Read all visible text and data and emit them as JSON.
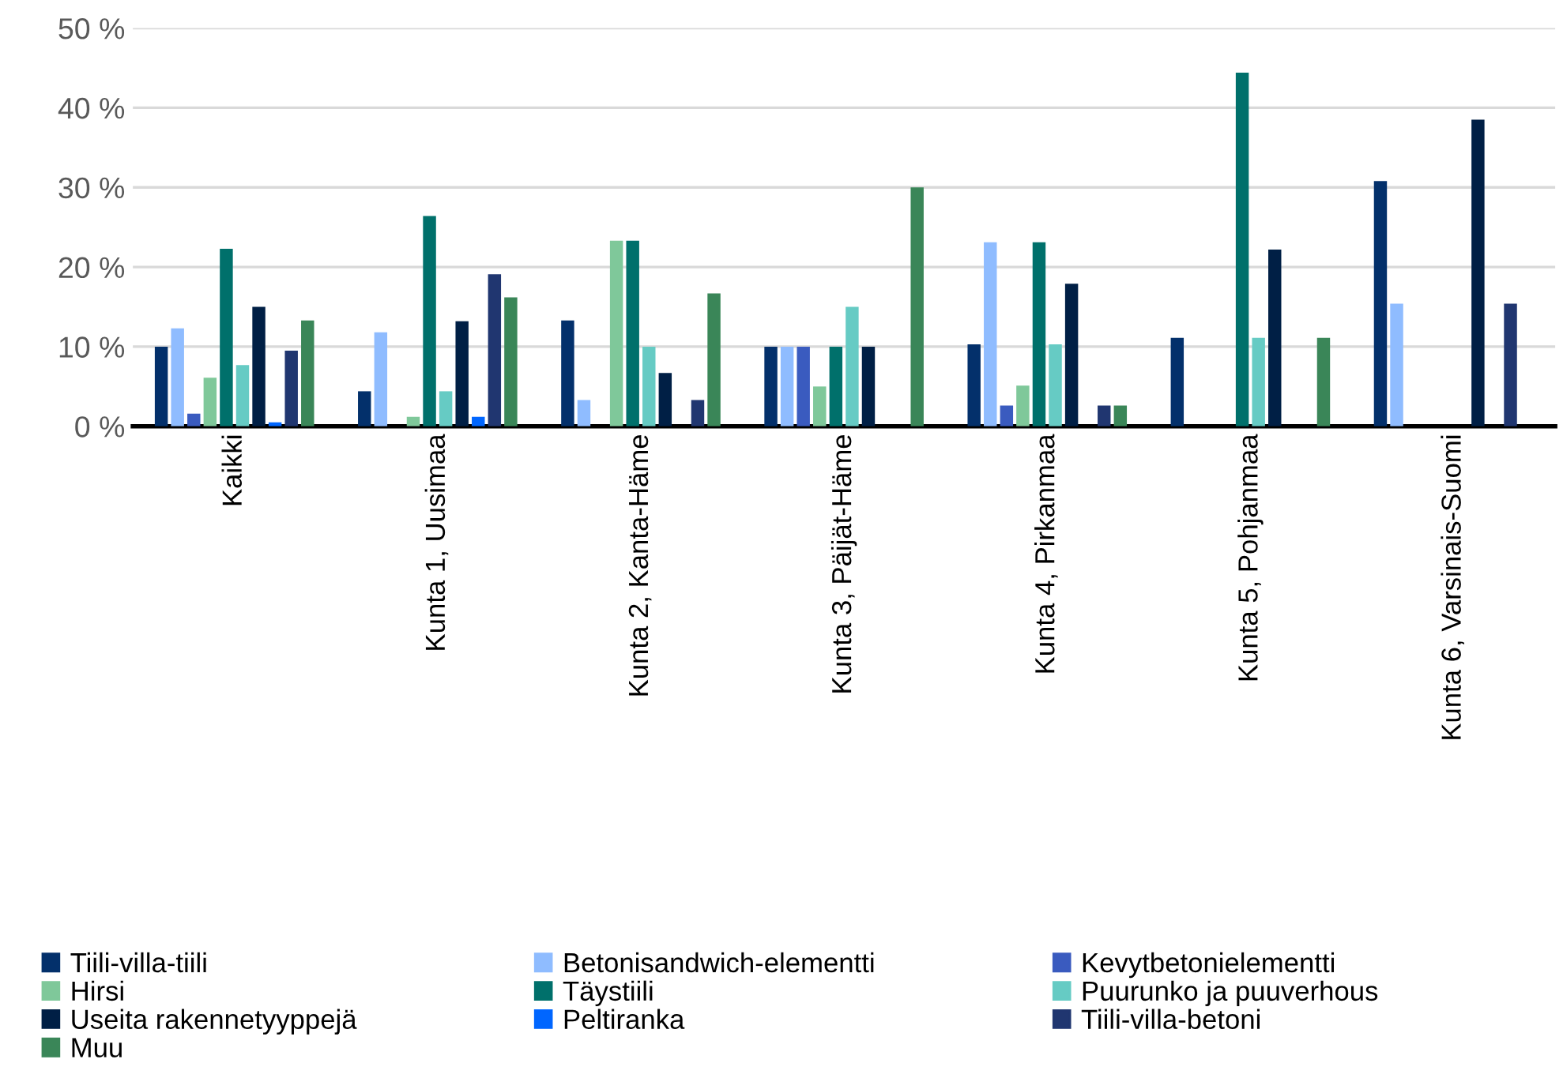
{
  "chart_data": {
    "type": "bar",
    "categories": [
      "Kaikki",
      "Kunta 1, Uusimaa",
      "Kunta 2, Kanta-Häme",
      "Kunta 3, Päijät-Häme",
      "Kunta 4, Pirkanmaa",
      "Kunta 5, Pohjanmaa",
      "Kunta 6, Varsinais-Suomi"
    ],
    "series": [
      {
        "name": "Tiili-villa-tiili",
        "color": "#03306b",
        "values": [
          10.0,
          4.4,
          13.3,
          10,
          10.3,
          11.1,
          30.8
        ]
      },
      {
        "name": "Betonisandwich-elementti",
        "color": "#8fbcff",
        "values": [
          12.3,
          11.8,
          3.3,
          10,
          23.1,
          0,
          15.4
        ]
      },
      {
        "name": "Kevytbetonielementti",
        "color": "#3a5bbf",
        "values": [
          1.6,
          0,
          0,
          10,
          2.6,
          0,
          0
        ]
      },
      {
        "name": "Hirsi",
        "color": "#7fc89a",
        "values": [
          6.1,
          1.2,
          23.3,
          5,
          5.1,
          0,
          0
        ]
      },
      {
        "name": "Täystiili",
        "color": "#00706b",
        "values": [
          22.3,
          26.4,
          23.3,
          10,
          23.1,
          44.4,
          0
        ]
      },
      {
        "name": "Puurunko ja puuverhous",
        "color": "#66cbc4",
        "values": [
          7.7,
          4.4,
          10,
          15,
          10.3,
          11.1,
          0
        ]
      },
      {
        "name": "Useita rakennetyyppejä",
        "color": "#001f45",
        "values": [
          15.0,
          13.2,
          6.7,
          10,
          17.9,
          22.2,
          38.5
        ]
      },
      {
        "name": "Peltiranka",
        "color": "#0066ff",
        "values": [
          0.5,
          1.2,
          0,
          0,
          0,
          0,
          0
        ]
      },
      {
        "name": "Tiili-villa-betoni",
        "color": "#203670",
        "values": [
          9.5,
          19.1,
          3.3,
          0,
          2.6,
          0,
          15.4
        ]
      },
      {
        "name": "Muu",
        "color": "#3a8658",
        "values": [
          13.3,
          16.2,
          16.7,
          30,
          2.6,
          11.1,
          0
        ]
      }
    ],
    "ylim": [
      0,
      50
    ],
    "yticks": [
      {
        "value": 0,
        "label": "0 %"
      },
      {
        "value": 10,
        "label": "10 %"
      },
      {
        "value": 20,
        "label": "20 %"
      },
      {
        "value": 30,
        "label": "30 %"
      },
      {
        "value": 40,
        "label": "40 %"
      },
      {
        "value": 50,
        "label": "50 %"
      }
    ],
    "grid": "y",
    "legend": "bottom"
  }
}
